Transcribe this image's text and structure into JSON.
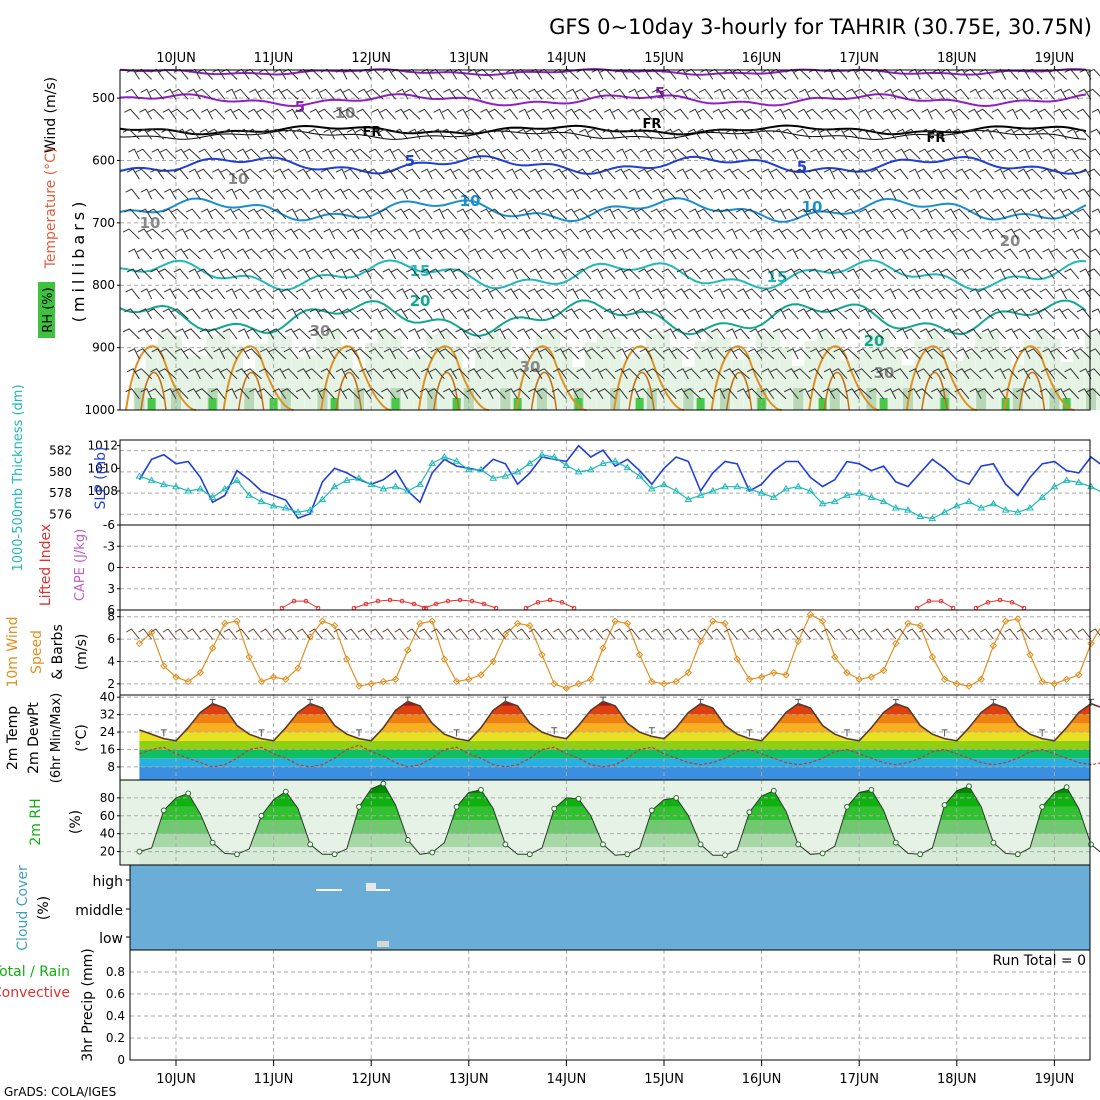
{
  "title": "GFS 0~10day 3-hourly for TAHRIR (30.75E, 30.75N)",
  "footer": "GrADS: COLA/IGES",
  "dates": [
    "10JUN",
    "11JUN",
    "12JUN",
    "13JUN",
    "14JUN",
    "15JUN",
    "16JUN",
    "17JUN",
    "18JUN",
    "19JUN"
  ],
  "colors": {
    "accent_blue": "#1f3fd8",
    "cyan": "#20b8b8",
    "orange": "#e09020",
    "red": "#e03030",
    "green": "#10b010",
    "purple": "#9020c0",
    "cloud_bg": "#6aaed8"
  },
  "panels": {
    "upper_air": {
      "label_wind": "Wind (m/s)",
      "label_temp": "Temperature (°C)",
      "label_rh": "RH (%)",
      "label_mb": "(millibars)",
      "yticks": [
        "500",
        "600",
        "700",
        "800",
        "900",
        "1000"
      ],
      "contour_labels": [
        "5",
        "5",
        "FR",
        "FR",
        "FR",
        "5",
        "5",
        "10",
        "10",
        "15",
        "15",
        "20",
        "20",
        "10",
        "10",
        "10",
        "30",
        "30",
        "30",
        "20"
      ]
    },
    "slp": {
      "label_thk": "1000-500mb Thickness (dm)",
      "label_slp": "SLP (mb)",
      "left_ticks": [
        "582",
        "580",
        "578",
        "576"
      ],
      "right_ticks": [
        "1012",
        "1010",
        "1008"
      ]
    },
    "cape": {
      "label_li": "Lifted Index",
      "label_cape": "CAPE (J/kg)",
      "yticks": [
        "-6",
        "-3",
        "0",
        "3",
        "6"
      ]
    },
    "wind10": {
      "label1": "10m Wind",
      "label2": "Speed",
      "label3": "& Barbs",
      "unit": "(m/s)",
      "yticks": [
        "8",
        "6",
        "4",
        "2"
      ]
    },
    "temp": {
      "label1": "2m Temp",
      "label2": "2m DewPt",
      "label3": "(6hr Min/Max)",
      "unit": "(°C)",
      "yticks": [
        "40",
        "32",
        "24",
        "16",
        "8"
      ]
    },
    "rh2m": {
      "label": "2m RH",
      "unit": "(%)",
      "yticks": [
        "80",
        "60",
        "40",
        "20"
      ]
    },
    "cloud": {
      "label": "Cloud Cover",
      "unit": "(%)",
      "levels": [
        "high",
        "middle",
        "low"
      ]
    },
    "precip": {
      "label_total": "Total / Rain",
      "label_conv": "Convective",
      "label_axis": "3hr Precip (mm)",
      "run_total": "Run Total = 0",
      "yticks": [
        "0.8",
        "0.6",
        "0.4",
        "0.2",
        "0"
      ]
    }
  },
  "chart_data": [
    {
      "type": "line",
      "name": "slp",
      "time_step_hours": 3,
      "series": [
        {
          "name": "SLP (mb)",
          "color": "#1f3fd8",
          "values": [
            1009.0,
            1010.8,
            1011.2,
            1010.4,
            1010.6,
            1009.2,
            1007.0,
            1007.6,
            1009.8,
            1009.0,
            1008.0,
            1007.6,
            1007.2,
            1005.6,
            1006.0,
            1008.8,
            1010.0,
            1009.6,
            1009.0,
            1008.6,
            1009.0,
            1009.8,
            1008.0,
            1007.0,
            1009.6,
            1010.8,
            1010.2,
            1010.0,
            1009.8,
            1010.8,
            1010.4,
            1008.6,
            1009.6,
            1011.0,
            1010.8,
            1010.6,
            1012.0,
            1011.0,
            1011.6,
            1010.2,
            1010.8,
            1009.8,
            1008.6,
            1010.0,
            1011.0,
            1010.6,
            1008.0,
            1009.6,
            1010.6,
            1010.4,
            1008.0,
            1008.6,
            1009.8,
            1010.6,
            1010.6,
            1009.2,
            1008.4,
            1009.0,
            1010.6,
            1010.4,
            1009.8,
            1010.2,
            1008.8,
            1008.4,
            1009.6,
            1010.8,
            1010.0,
            1009.0,
            1008.6,
            1010.2,
            1010.4,
            1008.6,
            1007.6,
            1009.2,
            1010.4,
            1010.6,
            1009.8,
            1009.6,
            1011.0,
            1010.2,
            1009.2,
            1008.4,
            1010.0,
            1010.6
          ]
        },
        {
          "name": "Thickness (dm)",
          "color": "#20b8b8",
          "values": [
            579.6,
            579.2,
            578.8,
            578.6,
            578.2,
            578.4,
            577.6,
            578.4,
            579.2,
            577.8,
            577.2,
            576.8,
            576.6,
            576.2,
            576.4,
            577.4,
            578.6,
            579.2,
            579.4,
            578.8,
            578.4,
            578.6,
            578.2,
            578.8,
            580.8,
            581.4,
            581.0,
            580.2,
            580.2,
            579.4,
            579.6,
            580.0,
            580.8,
            581.6,
            581.4,
            580.6,
            580.0,
            580.2,
            580.8,
            581.0,
            580.4,
            579.6,
            578.4,
            578.8,
            578.2,
            577.4,
            577.8,
            578.2,
            578.6,
            578.6,
            578.4,
            578.0,
            577.6,
            578.4,
            578.6,
            578.2,
            577.0,
            577.2,
            577.8,
            578.0,
            577.6,
            577.2,
            576.6,
            576.4,
            575.8,
            575.6,
            576.2,
            576.8,
            577.2,
            576.6,
            577.0,
            576.4,
            576.2,
            576.6,
            577.6,
            578.6,
            579.2,
            579.0,
            578.6,
            578.0,
            577.8,
            577.6,
            577.6,
            578.2
          ]
        }
      ]
    },
    {
      "type": "line",
      "name": "lifted_index",
      "series": [
        {
          "name": "Lifted Index",
          "color": "#e03030",
          "values": [
            null,
            null,
            null,
            null,
            null,
            null,
            null,
            null,
            null,
            null,
            null,
            null,
            null,
            null,
            null,
            6.5,
            6.0,
            5.5,
            6.0,
            6.5,
            null,
            null,
            null,
            null,
            null,
            null,
            null,
            null,
            null,
            null,
            null,
            null,
            null,
            null,
            null,
            null,
            null,
            null,
            null,
            null,
            null,
            null,
            null,
            null,
            null,
            null,
            null,
            null,
            null,
            null,
            null,
            null,
            null,
            null,
            null,
            null,
            null,
            null,
            null,
            null,
            null,
            null,
            null,
            null,
            null,
            null,
            null,
            null,
            null,
            null,
            null,
            null,
            null,
            null,
            null,
            null,
            null,
            null,
            null,
            null,
            null,
            null,
            null,
            null
          ]
        }
      ]
    },
    {
      "type": "line",
      "name": "wind10m",
      "series": [
        {
          "name": "10m Wind Speed",
          "color": "#e09020",
          "values": [
            5.6,
            6.6,
            3.6,
            2.6,
            2.2,
            3.0,
            5.2,
            7.4,
            7.6,
            4.4,
            2.2,
            2.6,
            2.4,
            3.4,
            6.2,
            7.6,
            7.2,
            4.2,
            1.8,
            2.0,
            2.2,
            2.4,
            5.0,
            7.4,
            7.6,
            4.2,
            2.2,
            2.4,
            2.8,
            4.0,
            6.4,
            7.4,
            7.2,
            4.6,
            2.0,
            1.6,
            2.0,
            2.4,
            5.2,
            7.6,
            7.4,
            4.6,
            2.2,
            2.0,
            2.2,
            3.0,
            5.8,
            7.6,
            7.4,
            4.2,
            2.4,
            2.6,
            3.0,
            2.8,
            5.8,
            8.2,
            7.6,
            4.4,
            3.0,
            2.4,
            2.6,
            3.2,
            5.6,
            7.4,
            7.2,
            4.4,
            2.4,
            2.0,
            1.8,
            2.4,
            5.4,
            7.6,
            7.8,
            4.6,
            2.2,
            2.0,
            2.4,
            2.8,
            5.6,
            7.4,
            7.6,
            4.2,
            2.4,
            3.0
          ]
        }
      ]
    },
    {
      "type": "area",
      "name": "temp2m",
      "series": [
        {
          "name": "2m Temp",
          "color": "#5a3a2a",
          "values": [
            25,
            23,
            21,
            20,
            26,
            33,
            37,
            35,
            27,
            23,
            21,
            20,
            26,
            33,
            37,
            35,
            27,
            23,
            21,
            20,
            26,
            34,
            38,
            36,
            28,
            23,
            21,
            20,
            26,
            34,
            38,
            36,
            28,
            24,
            22,
            21,
            27,
            34,
            38,
            36,
            28,
            24,
            22,
            21,
            26,
            33,
            37,
            35,
            27,
            23,
            21,
            20,
            26,
            33,
            37,
            35,
            27,
            23,
            21,
            20,
            26,
            33,
            37,
            35,
            27,
            23,
            21,
            20,
            26,
            33,
            37,
            35,
            27,
            23,
            21,
            20,
            26,
            33,
            37,
            35,
            27,
            23,
            21,
            20
          ]
        },
        {
          "name": "2m DewPt",
          "color": "#d03030",
          "values": [
            14,
            16,
            17,
            14,
            12,
            10,
            8,
            9,
            12,
            16,
            17,
            14,
            12,
            9,
            8,
            9,
            12,
            16,
            18,
            15,
            13,
            10,
            8,
            9,
            12,
            16,
            17,
            14,
            12,
            9,
            8,
            9,
            12,
            16,
            17,
            14,
            12,
            9,
            8,
            9,
            12,
            16,
            17,
            14,
            12,
            10,
            9,
            10,
            12,
            15,
            16,
            14,
            12,
            10,
            9,
            10,
            12,
            15,
            16,
            14,
            12,
            10,
            9,
            10,
            12,
            15,
            16,
            14,
            12,
            10,
            9,
            10,
            12,
            15,
            16,
            14,
            12,
            10,
            9,
            10,
            12,
            15,
            16,
            14
          ]
        }
      ]
    },
    {
      "type": "area",
      "name": "rh2m",
      "series": [
        {
          "name": "2m RH",
          "color": "#10b010",
          "values": [
            20,
            24,
            66,
            80,
            85,
            62,
            30,
            18,
            17,
            23,
            60,
            78,
            87,
            68,
            28,
            17,
            17,
            23,
            70,
            90,
            96,
            72,
            33,
            17,
            19,
            30,
            70,
            86,
            89,
            68,
            28,
            17,
            17,
            24,
            68,
            80,
            79,
            60,
            28,
            16,
            17,
            24,
            66,
            78,
            80,
            60,
            28,
            16,
            16,
            22,
            64,
            82,
            88,
            65,
            28,
            17,
            18,
            26,
            70,
            86,
            89,
            66,
            30,
            18,
            17,
            24,
            72,
            88,
            93,
            70,
            30,
            18,
            17,
            24,
            70,
            86,
            92,
            68,
            28,
            17,
            17,
            22,
            68,
            86
          ]
        }
      ]
    },
    {
      "type": "line",
      "name": "precip3hr",
      "ylim": [
        0,
        1
      ],
      "series": [
        {
          "name": "Total / Rain",
          "color": "#10b010",
          "values": []
        },
        {
          "name": "Convective",
          "color": "#e03030",
          "values": []
        }
      ]
    }
  ]
}
